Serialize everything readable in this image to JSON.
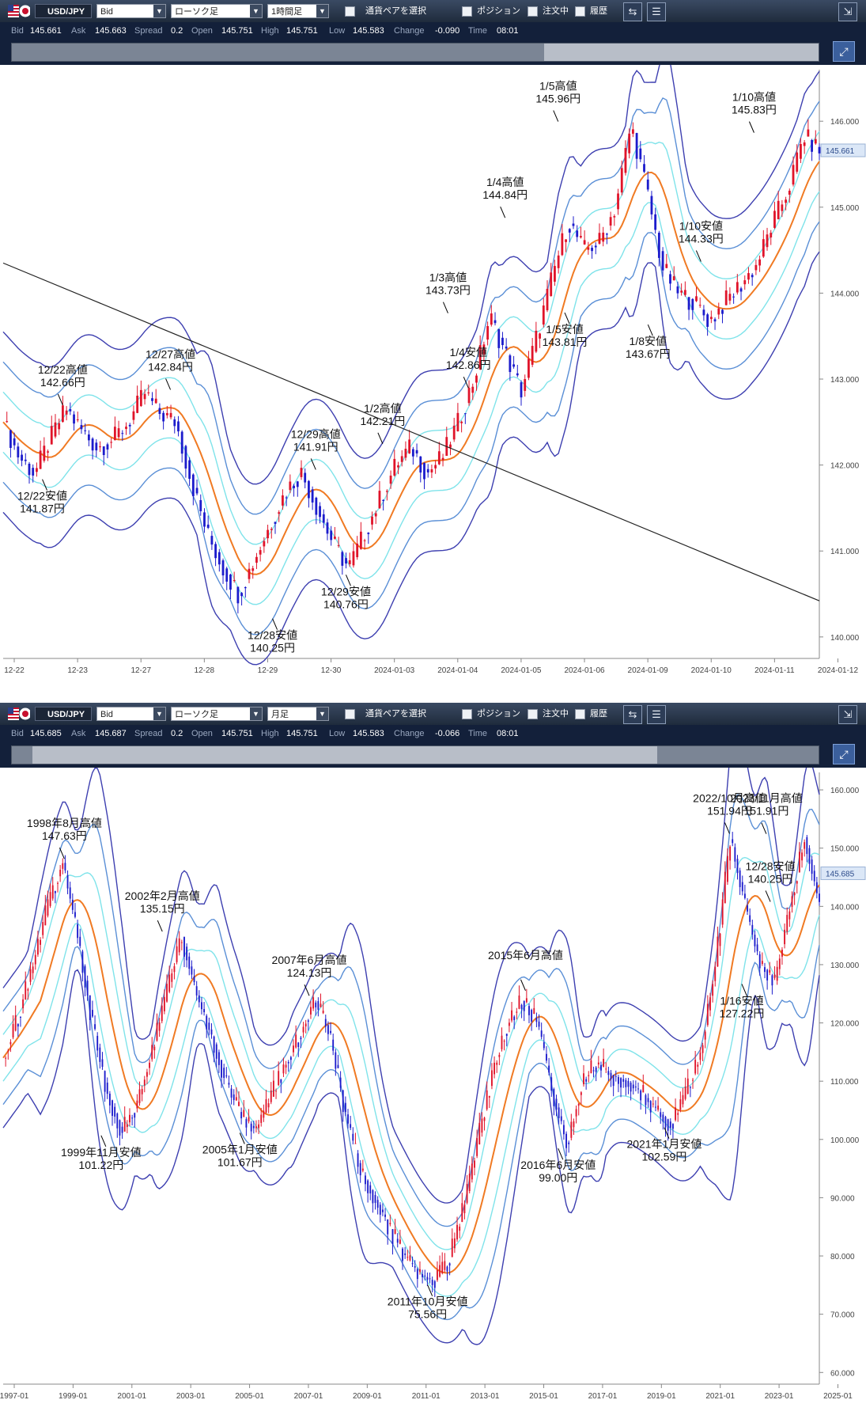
{
  "charts": [
    {
      "toolbar": {
        "pair": "USD/JPY",
        "price_type": "Bid",
        "chart_type": "ローソク足",
        "timeframe": "1時間足",
        "select_pair_label": "通貨ペアを選択",
        "position_label": "ポジション",
        "orders_label": "注文中",
        "history_label": "履歴"
      },
      "info": {
        "bid_label": "Bid",
        "bid": "145.661",
        "ask_label": "Ask",
        "ask": "145.663",
        "spread_label": "Spread",
        "spread": "0.2",
        "open_label": "Open",
        "open": "145.751",
        "high_label": "High",
        "high": "145.751",
        "low_label": "Low",
        "low": "145.583",
        "change_label": "Change",
        "change": "-0.090",
        "time_label": "Time",
        "time": "08:01"
      },
      "navigator": {
        "window_start": 0.66,
        "window_end": 1.0
      },
      "chart_data": {
        "type": "candlestick",
        "ylim": [
          139.75,
          146.6
        ],
        "yticks": [
          "146.000",
          "145.000",
          "144.000",
          "143.000",
          "142.000",
          "141.000",
          "140.000"
        ],
        "current_price": "145.661",
        "xticks": [
          "12-22",
          "12-23",
          "12-27",
          "12-28",
          "12-29",
          "12-30",
          "2024-01-03",
          "2024-01-04",
          "2024-01-05",
          "2024-01-06",
          "2024-01-09",
          "2024-01-10",
          "2024-01-11",
          "2024-01-12"
        ],
        "price_path": [
          142.5,
          142.1,
          141.9,
          142.3,
          142.66,
          142.4,
          142.2,
          142.3,
          142.5,
          142.84,
          142.6,
          142.5,
          141.8,
          141.2,
          140.8,
          140.5,
          140.9,
          141.3,
          141.7,
          141.91,
          141.5,
          141.1,
          140.8,
          141.2,
          141.6,
          142.0,
          142.21,
          141.9,
          142.1,
          142.5,
          143.0,
          143.73,
          143.3,
          142.86,
          143.5,
          144.2,
          144.84,
          144.5,
          144.6,
          145.0,
          145.96,
          145.2,
          144.3,
          144.0,
          143.9,
          143.67,
          143.9,
          144.1,
          144.33,
          144.8,
          145.2,
          145.83,
          145.66
        ],
        "trendline": [
          [
            0,
            144.35
          ],
          [
            1,
            140.42
          ]
        ],
        "annotations": [
          {
            "l1": "12/22高値",
            "l2": "142.66円",
            "x": 0.073,
            "y": 142.66
          },
          {
            "l1": "12/27高値",
            "l2": "142.84円",
            "x": 0.205,
            "y": 142.84
          },
          {
            "l1": "12/22安値",
            "l2": "141.87円",
            "x": 0.048,
            "y": 141.87
          },
          {
            "l1": "12/28安値",
            "l2": "140.25円",
            "x": 0.33,
            "y": 140.25
          },
          {
            "l1": "12/29高値",
            "l2": "141.91円",
            "x": 0.383,
            "y": 141.91
          },
          {
            "l1": "12/29安値",
            "l2": "140.76円",
            "x": 0.42,
            "y": 140.76
          },
          {
            "l1": "1/2高値",
            "l2": "142.21円",
            "x": 0.465,
            "y": 142.21
          },
          {
            "l1": "1/3高値",
            "l2": "143.73円",
            "x": 0.545,
            "y": 143.73
          },
          {
            "l1": "1/4安値",
            "l2": "142.86円",
            "x": 0.57,
            "y": 142.86
          },
          {
            "l1": "1/4高値",
            "l2": "144.84円",
            "x": 0.615,
            "y": 144.84
          },
          {
            "l1": "1/5高値",
            "l2": "145.96円",
            "x": 0.68,
            "y": 145.96
          },
          {
            "l1": "1/5安値",
            "l2": "143.81円",
            "x": 0.688,
            "y": 143.81
          },
          {
            "l1": "1/8安値",
            "l2": "143.67円",
            "x": 0.79,
            "y": 143.67
          },
          {
            "l1": "1/10高値",
            "l2": "145.83円",
            "x": 0.92,
            "y": 145.83
          },
          {
            "l1": "1/10安値",
            "l2": "144.33円",
            "x": 0.855,
            "y": 144.33
          }
        ]
      }
    },
    {
      "toolbar": {
        "pair": "USD/JPY",
        "price_type": "Bid",
        "chart_type": "ローソク足",
        "timeframe": "月足",
        "select_pair_label": "通貨ペアを選択",
        "position_label": "ポジション",
        "orders_label": "注文中",
        "history_label": "履歴"
      },
      "info": {
        "bid_label": "Bid",
        "bid": "145.685",
        "ask_label": "Ask",
        "ask": "145.687",
        "spread_label": "Spread",
        "spread": "0.2",
        "open_label": "Open",
        "open": "145.751",
        "high_label": "High",
        "high": "145.751",
        "low_label": "Low",
        "low": "145.583",
        "change_label": "Change",
        "change": "-0.066",
        "time_label": "Time",
        "time": "08:01"
      },
      "navigator": {
        "window_start": 0.025,
        "window_end": 0.8
      },
      "chart_data": {
        "type": "candlestick",
        "ylim": [
          58,
          163
        ],
        "yticks": [
          "160.000",
          "150.000",
          "140.000",
          "130.000",
          "120.000",
          "110.000",
          "100.000",
          "90.000",
          "80.000",
          "70.000",
          "60.000"
        ],
        "current_price": "145.685",
        "xticks": [
          "1997-01",
          "1999-01",
          "2001-01",
          "2003-01",
          "2005-01",
          "2007-01",
          "2009-01",
          "2011-01",
          "2013-01",
          "2015-01",
          "2017-01",
          "2019-01",
          "2021-01",
          "2023-01",
          "2025-01"
        ],
        "price_path": [
          114,
          121,
          130,
          140,
          147.63,
          135,
          120,
          108,
          101.22,
          106,
          115,
          125,
          135.15,
          125,
          118,
          110,
          104,
          101.67,
          107,
          113,
          118,
          124.13,
          118,
          105,
          95,
          90,
          85,
          80,
          77,
          75.56,
          79,
          88,
          100,
          112,
          120,
          124,
          120,
          108,
          99.0,
          110,
          113,
          111,
          110,
          108,
          105,
          102.59,
          108,
          115,
          130,
          151.94,
          140,
          130,
          127.22,
          140,
          151.91,
          140.25
        ],
        "annotations": [
          {
            "l1": "1998年8月高値",
            "l2": "147.63円",
            "x": 0.075,
            "y": 147.63
          },
          {
            "l1": "1999年11月安値",
            "l2": "101.22円",
            "x": 0.12,
            "y": 101.22
          },
          {
            "l1": "2002年2月高値",
            "l2": "135.15円",
            "x": 0.195,
            "y": 135.15
          },
          {
            "l1": "2005年1月安値",
            "l2": "101.67円",
            "x": 0.29,
            "y": 101.67
          },
          {
            "l1": "2007年6月高値",
            "l2": "124.13円",
            "x": 0.375,
            "y": 124.13
          },
          {
            "l1": "2011年10月安値",
            "l2": "75.56円",
            "x": 0.52,
            "y": 75.56
          },
          {
            "l1": "2015年6月高値",
            "l2": "",
            "x": 0.64,
            "y": 125.0
          },
          {
            "l1": "2016年6月安値",
            "l2": "99.00円",
            "x": 0.68,
            "y": 99.0
          },
          {
            "l1": "2021年1月安値",
            "l2": "102.59円",
            "x": 0.81,
            "y": 102.59
          },
          {
            "l1": "2022/10月高値",
            "l2": "151.94円",
            "x": 0.89,
            "y": 151.94
          },
          {
            "l1": "2023/11月高値",
            "l2": "151.91円",
            "x": 0.935,
            "y": 151.91
          },
          {
            "l1": "12/28安値",
            "l2": "140.25円",
            "x": 0.94,
            "y": 140.25
          },
          {
            "l1": "1/16安値",
            "l2": "127.22円",
            "x": 0.905,
            "y": 127.22
          }
        ]
      }
    }
  ]
}
